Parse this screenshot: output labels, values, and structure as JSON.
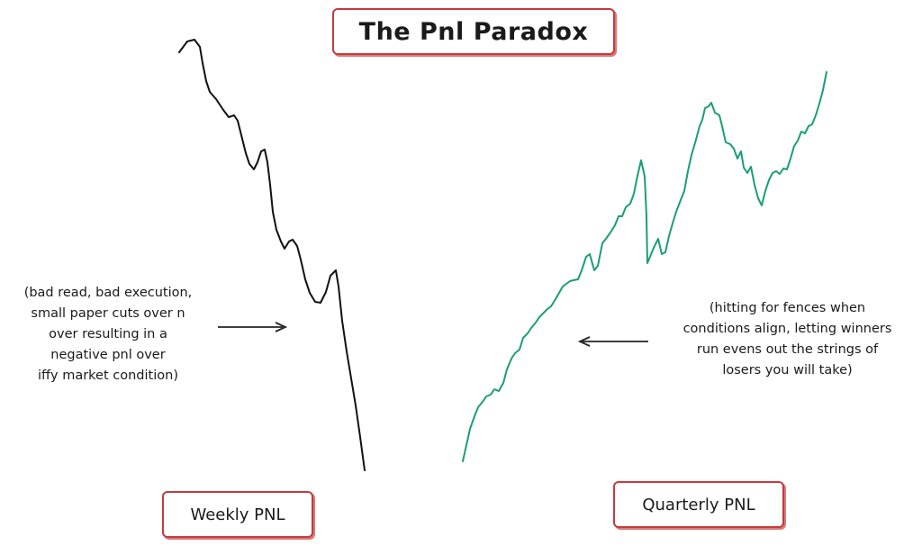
{
  "title": "The Pnl Paradox",
  "left_note": [
    "(bad read, bad execution,",
    "small paper cuts over n",
    "over resulting in a",
    "negative pnl over",
    "iffy market condition)"
  ],
  "right_note": [
    "(hitting for fences when",
    "conditions align, letting winners",
    "run evens out the strings of",
    "losers you will take)"
  ],
  "weekly_label": "Weekly PNL",
  "quarterly_label": "Quarterly PNL",
  "colors": {
    "box_border": "#c43b3b",
    "weekly_line": "#111111",
    "quarterly_line": "#1a9e78",
    "arrow": "#222222"
  }
}
